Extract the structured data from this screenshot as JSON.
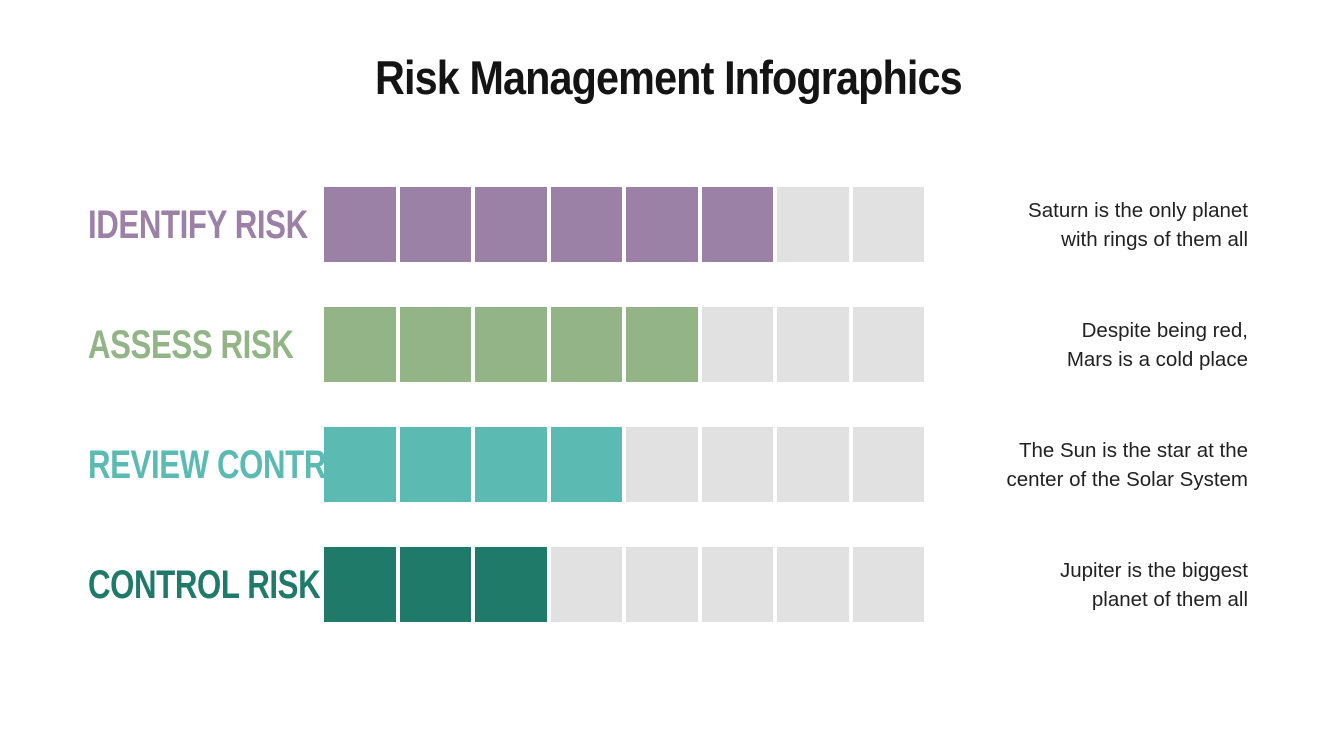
{
  "title": "Risk Management Infographics",
  "colors": {
    "background": "#FFFFFF",
    "title_text": "#141414",
    "body_text": "#212121",
    "empty_segment": "#E1E1E1"
  },
  "chart_data": {
    "type": "bar",
    "orientation": "horizontal",
    "title": "Risk Management Infographics",
    "categories": [
      "IDENTIFY RISK",
      "ASSESS RISK",
      "REVIEW CONTROL",
      "CONTROL RISK"
    ],
    "values": [
      6,
      5,
      4,
      3
    ],
    "segments_total": 8,
    "value_range": [
      0,
      8
    ],
    "series_colors": [
      "#9C81A6",
      "#92B487",
      "#5BBBB3",
      "#1F7A6A"
    ],
    "annotations": [
      "Saturn is the only planet with rings of them all",
      "Despite being red, Mars is a cold place",
      "The Sun is the star at the center of the Solar System",
      "Jupiter is the biggest planet of them all"
    ],
    "grid": false,
    "legend": false
  },
  "rows": [
    {
      "label": "IDENTIFY RISK",
      "color": "#9C81A6",
      "filled": 6,
      "total": 8,
      "desc_line1": "Saturn is the only planet",
      "desc_line2": "with rings of them all"
    },
    {
      "label": "ASSESS RISK",
      "color": "#92B487",
      "filled": 5,
      "total": 8,
      "desc_line1": "Despite being red,",
      "desc_line2": "Mars is a cold place"
    },
    {
      "label": "REVIEW CONTROL",
      "color": "#5BBBB3",
      "filled": 4,
      "total": 8,
      "desc_line1": "The Sun is the star at the",
      "desc_line2": "center of the Solar System"
    },
    {
      "label": "CONTROL RISK",
      "color": "#1F7A6A",
      "filled": 3,
      "total": 8,
      "desc_line1": "Jupiter is the biggest",
      "desc_line2": "planet of them all"
    }
  ]
}
